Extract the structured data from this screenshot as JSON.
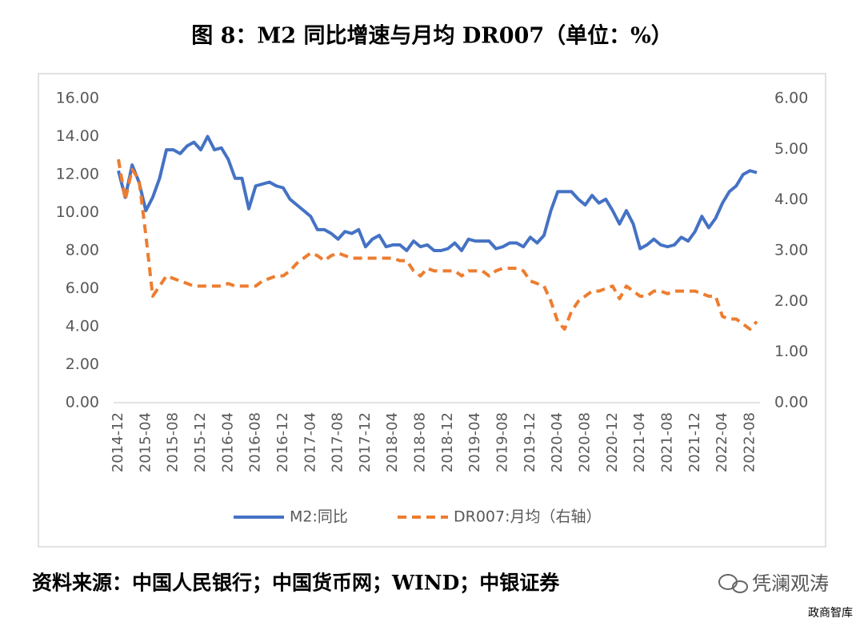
{
  "chart_data": {
    "type": "line",
    "title": "图 8：M2 同比增速与月均 DR007（单位：%）",
    "categories": [
      "2014-12",
      null,
      null,
      null,
      "2015-04",
      null,
      null,
      null,
      "2015-08",
      null,
      null,
      null,
      "2015-12",
      null,
      null,
      null,
      "2016-04",
      null,
      null,
      null,
      "2016-08",
      null,
      null,
      null,
      "2016-12",
      null,
      null,
      null,
      "2017-04",
      null,
      null,
      null,
      "2017-08",
      null,
      null,
      null,
      "2017-12",
      null,
      null,
      null,
      "2018-04",
      null,
      null,
      null,
      "2018-08",
      null,
      null,
      null,
      "2018-12",
      null,
      null,
      null,
      "2019-04",
      null,
      null,
      null,
      "2019-08",
      null,
      null,
      null,
      "2019-12",
      null,
      null,
      null,
      "2020-04",
      null,
      null,
      null,
      "2020-08",
      null,
      null,
      null,
      "2020-12",
      null,
      null,
      null,
      "2021-04",
      null,
      null,
      null,
      "2021-08",
      null,
      null,
      null,
      "2021-12",
      null,
      null,
      null,
      "2022-04",
      null,
      null,
      null,
      "2022-08",
      null
    ],
    "series": [
      {
        "name": "M2:同比",
        "color": "#4472c4",
        "dash": false,
        "axis": "y",
        "values": [
          12.2,
          10.8,
          12.5,
          11.6,
          10.1,
          10.8,
          11.8,
          13.3,
          13.3,
          13.1,
          13.5,
          13.7,
          13.3,
          14.0,
          13.3,
          13.4,
          12.8,
          11.8,
          11.8,
          10.2,
          11.4,
          11.5,
          11.6,
          11.4,
          11.3,
          10.7,
          10.4,
          10.1,
          9.8,
          9.1,
          9.1,
          8.9,
          8.6,
          9.0,
          8.9,
          9.1,
          8.2,
          8.6,
          8.8,
          8.2,
          8.3,
          8.3,
          8.0,
          8.5,
          8.2,
          8.3,
          8.0,
          8.0,
          8.1,
          8.4,
          8.0,
          8.6,
          8.5,
          8.5,
          8.5,
          8.1,
          8.2,
          8.4,
          8.4,
          8.2,
          8.7,
          8.4,
          8.8,
          10.1,
          11.1,
          11.1,
          11.1,
          10.7,
          10.4,
          10.9,
          10.5,
          10.7,
          10.1,
          9.4,
          10.1,
          9.4,
          8.1,
          8.3,
          8.6,
          8.3,
          8.2,
          8.3,
          8.7,
          8.5,
          9.0,
          9.8,
          9.2,
          9.7,
          10.5,
          11.1,
          11.4,
          12.0,
          12.2,
          12.1
        ]
      },
      {
        "name": "DR007:月均（右轴）",
        "color": "#ed7d31",
        "dash": true,
        "axis": "y2",
        "values": [
          4.8,
          4.0,
          4.6,
          4.4,
          3.3,
          2.1,
          2.3,
          2.5,
          2.45,
          2.4,
          2.35,
          2.3,
          2.3,
          2.3,
          2.3,
          2.3,
          2.35,
          2.3,
          2.3,
          2.3,
          2.3,
          2.4,
          2.45,
          2.5,
          2.5,
          2.6,
          2.75,
          2.85,
          2.95,
          2.9,
          2.8,
          2.9,
          2.95,
          2.9,
          2.85,
          2.85,
          2.85,
          2.85,
          2.85,
          2.85,
          2.85,
          2.8,
          2.8,
          2.6,
          2.5,
          2.65,
          2.6,
          2.6,
          2.6,
          2.6,
          2.5,
          2.6,
          2.6,
          2.6,
          2.5,
          2.6,
          2.65,
          2.65,
          2.65,
          2.6,
          2.4,
          2.35,
          2.3,
          2.0,
          1.6,
          1.45,
          1.8,
          2.0,
          2.1,
          2.2,
          2.2,
          2.25,
          2.3,
          2.05,
          2.3,
          2.2,
          2.1,
          2.1,
          2.2,
          2.2,
          2.15,
          2.2,
          2.2,
          2.2,
          2.2,
          2.15,
          2.1,
          2.1,
          1.7,
          1.65,
          1.65,
          1.55,
          1.45,
          1.6
        ]
      }
    ],
    "ylim": [
      0,
      16
    ],
    "yticks": [
      {
        "value": 0,
        "label": "0.00"
      },
      {
        "value": 2,
        "label": "2.00"
      },
      {
        "value": 4,
        "label": "4.00"
      },
      {
        "value": 6,
        "label": "6.00"
      },
      {
        "value": 8,
        "label": "8.00"
      },
      {
        "value": 10,
        "label": "10.00"
      },
      {
        "value": 12,
        "label": "12.00"
      },
      {
        "value": 14,
        "label": "14.00"
      },
      {
        "value": 16,
        "label": "16.00"
      }
    ],
    "y2lim": [
      0,
      6
    ],
    "y2ticks": [
      {
        "value": 0,
        "label": "0.00"
      },
      {
        "value": 1,
        "label": "1.00"
      },
      {
        "value": 2,
        "label": "2.00"
      },
      {
        "value": 3,
        "label": "3.00"
      },
      {
        "value": 4,
        "label": "4.00"
      },
      {
        "value": 5,
        "label": "5.00"
      },
      {
        "value": 6,
        "label": "6.00"
      }
    ],
    "grid": false,
    "legend": "bottom"
  },
  "source": "资料来源：中国人民银行；中国货币网；WIND；中银证券",
  "watermark": "凭澜观涛",
  "corner_mark": "政商智库"
}
